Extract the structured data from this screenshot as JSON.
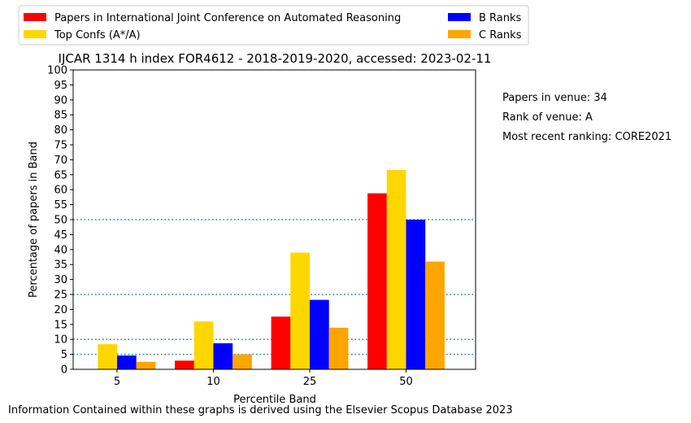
{
  "chart_data": {
    "type": "bar",
    "title": "IJCAR 1314 h index FOR4612 - 2018-2019-2020, accessed: 2023-02-11",
    "xlabel": "Percentile Band",
    "ylabel": "Percentage of papers in Band",
    "categories": [
      "5",
      "10",
      "25",
      "50"
    ],
    "ylim": [
      0,
      100
    ],
    "yticks": [
      "0",
      "5",
      "10",
      "15",
      "20",
      "25",
      "30",
      "35",
      "40",
      "45",
      "50",
      "55",
      "60",
      "65",
      "70",
      "75",
      "80",
      "85",
      "90",
      "95",
      "100"
    ],
    "reference_lines": [
      5,
      10,
      25,
      50
    ],
    "legend_position": "top-left (above axes)",
    "series": [
      {
        "name": "Papers in International Joint Conference on Automated Reasoning",
        "color": "#ff0000",
        "values": [
          0,
          2.9,
          17.6,
          58.8
        ]
      },
      {
        "name": "Top Confs (A*/A)",
        "color": "#ffd700",
        "values": [
          8.4,
          16.0,
          39.0,
          66.6
        ]
      },
      {
        "name": "B Ranks",
        "color": "#0000ff",
        "values": [
          4.6,
          8.7,
          23.2,
          50.0
        ]
      },
      {
        "name": "C Ranks",
        "color": "#ffa500",
        "values": [
          2.5,
          5.0,
          13.9,
          36.0
        ]
      }
    ],
    "info": {
      "papers": "Papers in venue: 34",
      "rank": "Rank of venue: A",
      "ranking": "Most recent ranking: CORE2021"
    },
    "footer": "Information Contained within these graphs is derived using the Elsevier Scopus Database 2023"
  }
}
